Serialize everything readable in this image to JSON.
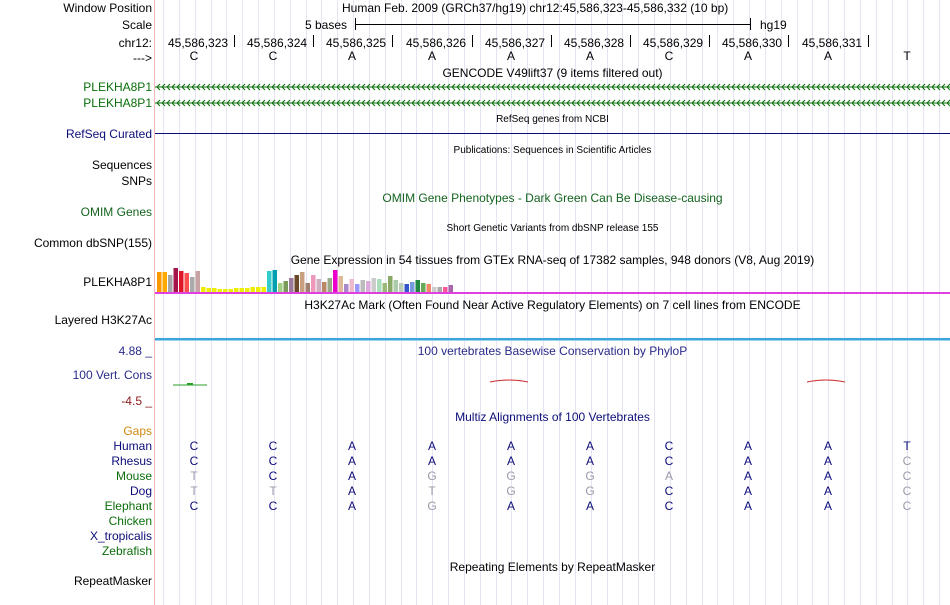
{
  "header": {
    "window_position_label": "Window Position",
    "scale_label": "Scale",
    "chrom_label": "chr12:",
    "strand_label": "--->",
    "position_text": "Human Feb. 2009 (GRCh37/hg19)   chr12:45,586,323-45,586,332 (10 bp)",
    "scale_text": "5 bases",
    "assembly": "hg19",
    "coords": [
      "45,586,323",
      "45,586,324",
      "45,586,325",
      "45,586,326",
      "45,586,327",
      "45,586,328",
      "45,586,329",
      "45,586,330",
      "45,586,331"
    ],
    "bases": [
      "C",
      "C",
      "A",
      "A",
      "A",
      "A",
      "C",
      "A",
      "A",
      "T"
    ]
  },
  "tracks": {
    "gencode": {
      "title": "GENCODE V49lift37 (9 items filtered out)",
      "genes": [
        "PLEKHA8P1",
        "PLEKHA8P1"
      ]
    },
    "refseq": {
      "title": "RefSeq genes from NCBI",
      "label": "RefSeq Curated"
    },
    "publications": {
      "title": "Publications: Sequences in Scientific Articles",
      "label1": "Sequences",
      "label2": "SNPs"
    },
    "omim": {
      "title": "OMIM Gene Phenotypes - Dark Green Can Be Disease-causing",
      "label": "OMIM Genes"
    },
    "dbsnp": {
      "title": "Short Genetic Variants from dbSNP release 155",
      "label": "Common dbSNP(155)"
    },
    "gtex": {
      "title": "Gene Expression in 54 tissues from GTEx RNA-seq of 17382 samples, 948 donors (V8, Aug 2019)",
      "label": "PLEKHA8P1"
    },
    "h3k27ac": {
      "title": "H3K27Ac Mark (Often Found Near Active Regulatory Elements) on 7 cell lines from ENCODE",
      "label": "Layered H3K27Ac"
    },
    "phylop": {
      "title": "100 vertebrates Basewise Conservation by PhyloP",
      "label": "100 Vert. Cons",
      "max": "4.88 _",
      "min": "-4.5 _"
    },
    "multiz": {
      "title": "Multiz Alignments of 100 Vertebrates",
      "gaps_label": "Gaps",
      "species": [
        {
          "name": "Human",
          "seq": [
            "C",
            "C",
            "A",
            "A",
            "A",
            "A",
            "C",
            "A",
            "A",
            "T"
          ]
        },
        {
          "name": "Rhesus",
          "seq": [
            "C",
            "C",
            "A",
            "A",
            "A",
            "A",
            "C",
            "A",
            "A",
            "C"
          ]
        },
        {
          "name": "Mouse",
          "seq": [
            "T",
            "C",
            "A",
            "G",
            "G",
            "G",
            "A",
            "A",
            "A",
            "C"
          ]
        },
        {
          "name": "Dog",
          "seq": [
            "T",
            "T",
            "A",
            "T",
            "G",
            "G",
            "C",
            "A",
            "A",
            "C"
          ]
        },
        {
          "name": "Elephant",
          "seq": [
            "C",
            "C",
            "A",
            "G",
            "A",
            "A",
            "C",
            "A",
            "A",
            "C"
          ]
        },
        {
          "name": "Chicken",
          "seq": []
        },
        {
          "name": "X_tropicalis",
          "seq": []
        },
        {
          "name": "Zebrafish",
          "seq": []
        }
      ]
    },
    "repeatmasker": {
      "title": "Repeating Elements by RepeatMasker",
      "label": "RepeatMasker"
    }
  },
  "colors": {
    "gencode": "#0a6e0a",
    "refseq": "#0c0c78",
    "omim": "#14641e",
    "phylop": "#2a2a8a",
    "gaps": "#d08a10",
    "species": "#0c0c78",
    "species_green": "#0a6e0a",
    "gtex_line": "#e040e0",
    "h3k27ac": "#3aa5dc",
    "phylop_neg": "#c83030",
    "phylop_pos": "#28a028",
    "sep": "#f2b9b9"
  }
}
